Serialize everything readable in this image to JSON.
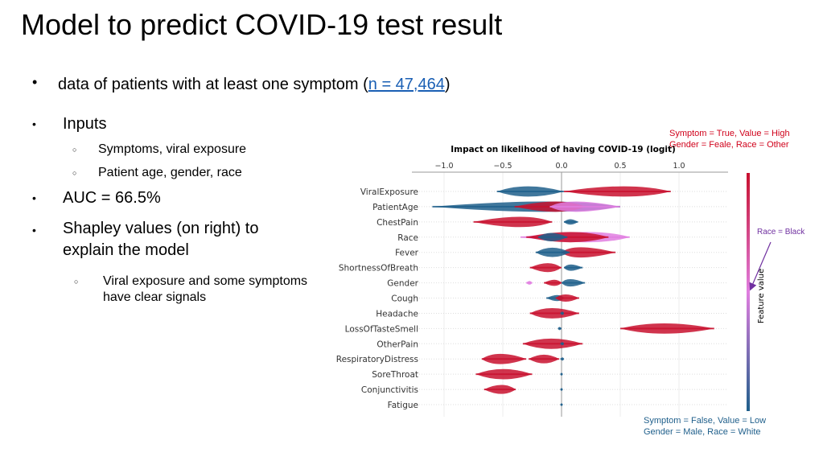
{
  "slide": {
    "title": "Model to predict COVID-19 test result",
    "bullets": [
      {
        "text_before": "data of patients with at least one symptom (",
        "link": "n = 47,464",
        "text_after": ")"
      },
      {
        "text": "Inputs",
        "sub": [
          "Symptoms, viral exposure",
          "Patient age, gender, race"
        ]
      },
      {
        "text": "AUC = 66.5%"
      },
      {
        "text_lines": [
          "Shapley values (on right) to",
          "explain the model"
        ],
        "sub_lines": [
          "Viral exposure and some symptoms",
          "have clear signals"
        ]
      }
    ]
  },
  "annotations": {
    "high": [
      "Symptom = True, Value = High",
      "Gender = Feale, Race = Other"
    ],
    "middle": "Race = Black",
    "low": [
      "Symptom = False, Value = Low",
      "Gender = Male, Race = White"
    ]
  },
  "colors": {
    "high": "#c8102e",
    "low": "#1f5f8b",
    "middle": "#e07ee0",
    "annotation_high": "#d0021b",
    "annotation_middle": "#7030a0",
    "annotation_low": "#1f5f8b",
    "link": "#1a5fb4"
  },
  "chart_data": {
    "type": "scatter",
    "subtype": "shap-beeswarm",
    "title": "Impact on likelihood of having COVID-19 (logit)",
    "xlim": [
      -1.2,
      1.4
    ],
    "xticks": [
      -1.0,
      -0.5,
      0.0,
      0.5,
      1.0
    ],
    "xtick_labels": [
      "−1.0",
      "−0.5",
      "0.0",
      "0.5",
      "1.0"
    ],
    "colorbar_label": "Feature value",
    "grid": true,
    "features": [
      {
        "name": "ViralExposure",
        "clusters": [
          {
            "color": "low",
            "range": [
              -0.55,
              0.02
            ],
            "peak": -0.3
          },
          {
            "color": "high",
            "range": [
              0.02,
              0.93
            ],
            "peak": 0.58
          }
        ]
      },
      {
        "name": "PatientAge",
        "clusters": [
          {
            "color": "low",
            "range": [
              -1.1,
              0.5
            ],
            "peak": 0.0
          },
          {
            "color": "high",
            "range": [
              -0.4,
              0.2
            ],
            "peak": 0.0
          },
          {
            "color": "middle",
            "range": [
              -0.1,
              0.5
            ],
            "peak": 0.05
          }
        ]
      },
      {
        "name": "ChestPain",
        "clusters": [
          {
            "color": "high",
            "range": [
              -0.75,
              -0.08
            ],
            "peak": -0.3
          },
          {
            "color": "low",
            "range": [
              0.02,
              0.14
            ],
            "peak": 0.07
          }
        ]
      },
      {
        "name": "Race",
        "clusters": [
          {
            "color": "middle",
            "range": [
              -0.35,
              0.58
            ],
            "peak": 0.3
          },
          {
            "color": "high",
            "range": [
              -0.3,
              0.4
            ],
            "peak": 0.1
          },
          {
            "color": "low",
            "range": [
              -0.2,
              0.05
            ],
            "peak": -0.1
          }
        ]
      },
      {
        "name": "Fever",
        "clusters": [
          {
            "color": "high",
            "range": [
              0.0,
              0.46
            ],
            "peak": 0.1
          },
          {
            "color": "low",
            "range": [
              -0.22,
              0.07
            ],
            "peak": -0.08
          }
        ]
      },
      {
        "name": "ShortnessOfBreath",
        "clusters": [
          {
            "color": "high",
            "range": [
              -0.27,
              0.0
            ],
            "peak": -0.1
          },
          {
            "color": "low",
            "range": [
              0.02,
              0.18
            ],
            "peak": 0.06
          }
        ]
      },
      {
        "name": "Gender",
        "clusters": [
          {
            "color": "middle",
            "range": [
              -0.3,
              -0.25
            ],
            "peak": -0.27
          },
          {
            "color": "high",
            "range": [
              -0.15,
              0.0
            ],
            "peak": -0.05
          },
          {
            "color": "low",
            "range": [
              0.0,
              0.2
            ],
            "peak": 0.05
          }
        ]
      },
      {
        "name": "Cough",
        "clusters": [
          {
            "color": "low",
            "range": [
              -0.13,
              0.02
            ],
            "peak": -0.02
          },
          {
            "color": "high",
            "range": [
              -0.05,
              0.15
            ],
            "peak": 0.02
          }
        ]
      },
      {
        "name": "Headache",
        "clusters": [
          {
            "color": "high",
            "range": [
              -0.27,
              0.15
            ],
            "peak": -0.1
          },
          {
            "color": "low",
            "range": [
              -0.01,
              0.02
            ],
            "peak": 0.01
          }
        ]
      },
      {
        "name": "LossOfTasteSmell",
        "clusters": [
          {
            "color": "low",
            "range": [
              -0.03,
              0.0
            ],
            "peak": -0.02
          },
          {
            "color": "high",
            "range": [
              0.5,
              1.3
            ],
            "peak": 0.85
          }
        ]
      },
      {
        "name": "OtherPain",
        "clusters": [
          {
            "color": "high",
            "range": [
              -0.33,
              0.18
            ],
            "peak": -0.1
          },
          {
            "color": "low",
            "range": [
              -0.01,
              0.02
            ],
            "peak": 0.01
          }
        ]
      },
      {
        "name": "RespiratoryDistress",
        "clusters": [
          {
            "color": "high",
            "range": [
              -0.68,
              -0.3
            ],
            "peak": -0.55
          },
          {
            "color": "high",
            "range": [
              -0.28,
              -0.02
            ],
            "peak": -0.15
          },
          {
            "color": "low",
            "range": [
              -0.01,
              0.02
            ],
            "peak": 0.01
          }
        ]
      },
      {
        "name": "SoreThroat",
        "clusters": [
          {
            "color": "high",
            "range": [
              -0.73,
              -0.25
            ],
            "peak": -0.5
          },
          {
            "color": "low",
            "range": [
              -0.01,
              0.01
            ],
            "peak": 0.0
          }
        ]
      },
      {
        "name": "Conjunctivitis",
        "clusters": [
          {
            "color": "high",
            "range": [
              -0.66,
              -0.39
            ],
            "peak": -0.5
          },
          {
            "color": "low",
            "range": [
              -0.01,
              0.01
            ],
            "peak": 0.0
          }
        ]
      },
      {
        "name": "Fatigue",
        "clusters": [
          {
            "color": "low",
            "range": [
              -0.01,
              0.01
            ],
            "peak": 0.0
          }
        ]
      }
    ]
  }
}
